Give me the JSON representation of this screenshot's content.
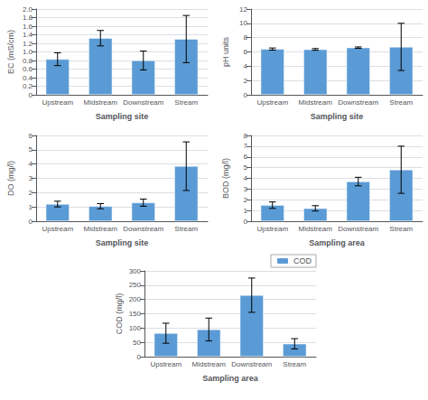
{
  "chart_data": [
    {
      "type": "bar",
      "categories": [
        "Upstream",
        "Midstream",
        "Downstream",
        "Stream"
      ],
      "values": [
        0.83,
        1.32,
        0.8,
        1.3
      ],
      "errors": [
        0.15,
        0.18,
        0.22,
        0.55
      ],
      "color": "#5B9BD5",
      "ylabel": "EC (mS/cm)",
      "xlabel": "Sampling site",
      "ylim": [
        0,
        2.0
      ],
      "yticks": [
        0,
        0.2,
        0.4,
        0.6,
        0.8,
        {
          "value": 1,
          "label": "1.0"
        },
        1.2,
        1.4,
        1.6,
        1.8,
        {
          "value": 2,
          "label": "2.0"
        }
      ],
      "grid": true
    },
    {
      "type": "bar",
      "categories": [
        "Upstream",
        "Midstream",
        "Downstream",
        "Stream"
      ],
      "values": [
        6.4,
        6.35,
        6.6,
        6.7
      ],
      "errors": [
        0.15,
        0.12,
        0.1,
        3.3
      ],
      "color": "#5B9BD5",
      "ylabel": "pH units",
      "xlabel": "Sampling site",
      "ylim": [
        0,
        12
      ],
      "yticks": [
        0,
        2,
        4,
        6,
        8,
        10,
        12
      ],
      "grid": true
    },
    {
      "type": "bar",
      "categories": [
        "Upstream",
        "Midstream",
        "Downstream",
        "Stream"
      ],
      "values": [
        1.2,
        1.05,
        1.3,
        3.85
      ],
      "errors": [
        0.2,
        0.18,
        0.25,
        1.7
      ],
      "color": "#5B9BD5",
      "ylabel": "DO (mg/l)",
      "xlabel": "Sampling site",
      "ylim": [
        0,
        6
      ],
      "yticks": [
        0,
        1,
        2,
        3,
        4,
        5,
        6
      ],
      "grid": true
    },
    {
      "type": "bar",
      "categories": [
        "Upstream",
        "Midstream",
        "Downstream",
        "Stream"
      ],
      "values": [
        1.5,
        1.2,
        3.7,
        4.8
      ],
      "errors": [
        0.3,
        0.25,
        0.4,
        2.2
      ],
      "color": "#5B9BD5",
      "ylabel": "BOD (mg/l)",
      "xlabel": "Sampling area",
      "ylim": [
        0,
        8
      ],
      "yticks": [
        0,
        1,
        2,
        3,
        4,
        5,
        6,
        7,
        8
      ],
      "grid": true
    },
    {
      "type": "bar",
      "categories": [
        "Upstream",
        "Midstream",
        "Downstream",
        "Stream"
      ],
      "series": [
        {
          "name": "COD",
          "color": "#5B9BD5",
          "values": [
            82,
            95,
            215,
            45
          ],
          "errors": [
            35,
            40,
            60,
            18
          ]
        }
      ],
      "ylabel": "COD (mg/l)",
      "xlabel": "Sampling area",
      "ylim": [
        0,
        300
      ],
      "yticks": [
        0,
        50,
        100,
        150,
        200,
        250,
        300
      ],
      "grid": true,
      "legend": "upper right"
    }
  ]
}
